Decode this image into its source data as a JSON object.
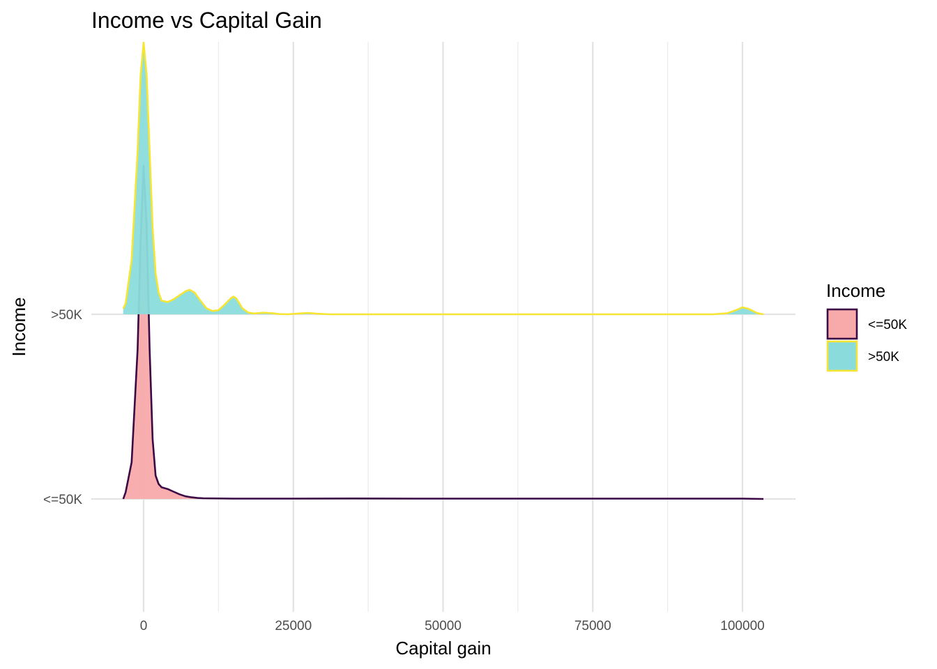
{
  "chart_data": {
    "type": "area",
    "subtype": "ridgeline-density",
    "title": "Income vs Capital Gain",
    "xlabel": "Capital gain",
    "ylabel": "Income",
    "xlim": [
      -5000,
      108000
    ],
    "x_ticks": [
      0,
      25000,
      50000,
      75000,
      100000
    ],
    "x_tick_labels": [
      "0",
      "25000",
      "50000",
      "75000",
      "100000"
    ],
    "x_minor_gridlines": [
      12500,
      37500,
      62500,
      87500
    ],
    "categories": [
      "<=50K",
      ">50K"
    ],
    "grid": true,
    "legend": {
      "title": "Income",
      "position": "right",
      "entries": [
        {
          "label": "<=50K",
          "fill": "#f8aaaa",
          "outline": "#3b0a45"
        },
        {
          "label": ">50K",
          "fill": "#8adcdc",
          "outline": "#f6e533"
        }
      ]
    },
    "series": [
      {
        "name": "<=50K",
        "baseline": "<=50K",
        "fill": "#f8aaaa",
        "outline": "#3b0a45",
        "x": [
          -3400,
          -3000,
          -2000,
          -1000,
          -500,
          0,
          500,
          1000,
          1500,
          2000,
          2500,
          3000,
          4000,
          5000,
          6000,
          7000,
          8000,
          9000,
          10000,
          15000,
          25000,
          35000,
          45000,
          60000,
          75000,
          90000,
          100000,
          103500
        ],
        "density": [
          0.0,
          0.02,
          0.11,
          0.45,
          0.78,
          1.0,
          0.82,
          0.45,
          0.18,
          0.07,
          0.045,
          0.035,
          0.03,
          0.022,
          0.014,
          0.008,
          0.005,
          0.003,
          0.002,
          0.001,
          0.001,
          0.0015,
          0.001,
          0.001,
          0.001,
          0.001,
          0.001,
          0.0
        ]
      },
      {
        "name": ">50K",
        "baseline": ">50K",
        "fill": "#8adcdc",
        "outline": "#f6e533",
        "x": [
          -3400,
          -3000,
          -2000,
          -1000,
          -500,
          0,
          500,
          1000,
          1500,
          2000,
          2500,
          3000,
          4000,
          5000,
          6000,
          7000,
          7700,
          8500,
          9500,
          10500,
          11500,
          12500,
          13500,
          14500,
          15000,
          15500,
          16500,
          17500,
          18500,
          20000,
          21500,
          22500,
          24000,
          26000,
          27500,
          29000,
          31000,
          40000,
          60000,
          80000,
          95000,
          97500,
          99000,
          100000,
          101000,
          102500,
          103500
        ],
        "density": [
          0.02,
          0.04,
          0.2,
          0.6,
          0.88,
          1.0,
          0.88,
          0.6,
          0.32,
          0.15,
          0.08,
          0.05,
          0.045,
          0.055,
          0.07,
          0.085,
          0.09,
          0.08,
          0.05,
          0.022,
          0.012,
          0.015,
          0.035,
          0.058,
          0.065,
          0.058,
          0.022,
          0.006,
          0.003,
          0.006,
          0.004,
          0.001,
          0.0,
          0.003,
          0.005,
          0.002,
          0.0,
          0.0,
          0.0,
          0.0,
          0.0,
          0.004,
          0.016,
          0.026,
          0.02,
          0.004,
          0.0
        ]
      }
    ]
  }
}
